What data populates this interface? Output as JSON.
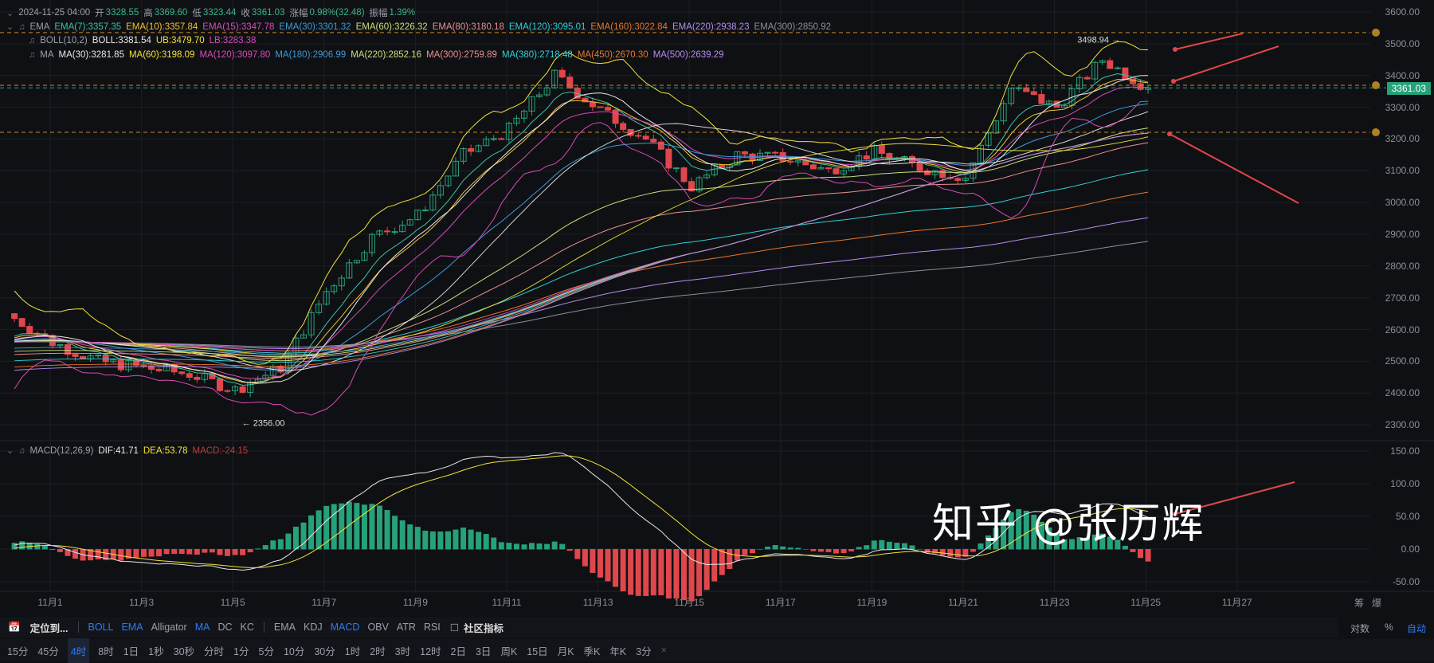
{
  "header": {
    "datetime": "2024-11-25 04:00",
    "open_label": "开",
    "open": "3328.55",
    "high_label": "高",
    "high": "3369.60",
    "low_label": "低",
    "low": "3323.44",
    "close_label": "收",
    "close": "3361.03",
    "change_label": "涨幅",
    "change": "0.98%(32.48)",
    "amp_label": "振幅",
    "amp": "1.39%"
  },
  "ema_legend": {
    "name": "EMA",
    "items": [
      {
        "t": "EMA(7):3357.35",
        "c": "#3bc3a3"
      },
      {
        "t": "EMA(10):3357.84",
        "c": "#f2c230"
      },
      {
        "t": "EMA(15):3347.78",
        "c": "#d64cb4"
      },
      {
        "t": "EMA(30):3301.32",
        "c": "#3d9ad8"
      },
      {
        "t": "EMA(60):3226.32",
        "c": "#c9e07a"
      },
      {
        "t": "EMA(80):3180.18",
        "c": "#e99191"
      },
      {
        "t": "EMA(120):3095.01",
        "c": "#2fd0d6"
      },
      {
        "t": "EMA(160):3022.84",
        "c": "#e9762c"
      },
      {
        "t": "EMA(220):2938.23",
        "c": "#b58cf0"
      },
      {
        "t": "EMA(300):2850.92",
        "c": "#8a8f99"
      }
    ]
  },
  "boll_legend": {
    "name": "BOLL(10,2)",
    "items": [
      {
        "t": "BOLL:3381.54",
        "c": "#e8e8e8"
      },
      {
        "t": "UB:3479.70",
        "c": "#f2e23a"
      },
      {
        "t": "LB:3283.38",
        "c": "#d64cb4"
      }
    ]
  },
  "ma_legend": {
    "name": "MA",
    "items": [
      {
        "t": "MA(30):3281.85",
        "c": "#e8e8e8"
      },
      {
        "t": "MA(60):3198.09",
        "c": "#f2e23a"
      },
      {
        "t": "MA(120):3097.80",
        "c": "#d64cb4"
      },
      {
        "t": "MA(180):2906.99",
        "c": "#3d9ad8"
      },
      {
        "t": "MA(220):2852.16",
        "c": "#c9e07a"
      },
      {
        "t": "MA(300):2759.89",
        "c": "#e99191"
      },
      {
        "t": "MA(380):2718.48",
        "c": "#2fd0d6"
      },
      {
        "t": "MA(450):2670.30",
        "c": "#e9762c"
      },
      {
        "t": "MA(500):2639.29",
        "c": "#b58cf0"
      }
    ]
  },
  "macd_legend": {
    "name": "MACD(12,26,9)",
    "dif": "DIF:41.71",
    "dea": "DEA:53.78",
    "macd": "MACD:-24.15"
  },
  "price_axis": [
    "3600.00",
    "3500.00",
    "3400.00",
    "3300.00",
    "3200.00",
    "3100.00",
    "3000.00",
    "2900.00",
    "2800.00",
    "2700.00",
    "2600.00",
    "2500.00",
    "2400.00",
    "2300.00"
  ],
  "macd_axis": [
    "150.00",
    "100.00",
    "50.00",
    "0.00",
    "-50.00"
  ],
  "last_price": "3361.03",
  "high_marker": "3498.94 →",
  "low_marker": "← 2356.00",
  "date_labels": [
    "11月1",
    "11月3",
    "11月5",
    "11月7",
    "11月9",
    "11月11",
    "11月13",
    "11月15",
    "11月17",
    "11月19",
    "11月21",
    "11月23",
    "11月25",
    "11月27"
  ],
  "right_corner": [
    "筹",
    "爆"
  ],
  "scale_options": {
    "log": "对数",
    "pct": "%",
    "auto": "自动"
  },
  "toolbar": {
    "locate": "定位到...",
    "main_indicators": [
      "BOLL",
      "EMA",
      "Alligator",
      "MA",
      "DC",
      "KC"
    ],
    "main_active": [
      "BOLL",
      "EMA",
      "MA"
    ],
    "sub_indicators": [
      "EMA",
      "KDJ",
      "MACD",
      "OBV",
      "ATR",
      "RSI"
    ],
    "sub_active": [
      "MACD"
    ],
    "community": "社区指标"
  },
  "intervals": [
    "15分",
    "45分",
    "4时",
    "8时",
    "1日",
    "1秒",
    "30秒",
    "分时",
    "1分",
    "5分",
    "10分",
    "30分",
    "1时",
    "2时",
    "3时",
    "12时",
    "2日",
    "3日",
    "周K",
    "15日",
    "月K",
    "季K",
    "年K",
    "3分"
  ],
  "active_interval": "4时",
  "close_icon": "×",
  "watermark": "知乎 @张历辉",
  "colors": {
    "up": "#26a17b",
    "down": "#e0474c",
    "bg": "#0f1013",
    "accent": "#2d7cf5",
    "hline": "#c98a2a"
  },
  "chart_data": {
    "type": "candlestick",
    "interval": "4h",
    "ylim": [
      2250,
      3620
    ],
    "macd_ylim": [
      -70,
      150
    ],
    "close_path": [
      [
        "10-31",
        2650
      ],
      [
        "11-1",
        2560
      ],
      [
        "11-2",
        2500
      ],
      [
        "11-3",
        2480
      ],
      [
        "11-4",
        2460
      ],
      [
        "11-5",
        2410
      ],
      [
        "11-6",
        2480
      ],
      [
        "11-7",
        2720
      ],
      [
        "11-8",
        2890
      ],
      [
        "11-9",
        2960
      ],
      [
        "11-10",
        3150
      ],
      [
        "11-11",
        3230
      ],
      [
        "11-12",
        3400
      ],
      [
        "11-13",
        3290
      ],
      [
        "11-14",
        3200
      ],
      [
        "11-15",
        3050
      ],
      [
        "11-16",
        3150
      ],
      [
        "11-17",
        3140
      ],
      [
        "11-18",
        3100
      ],
      [
        "11-19",
        3160
      ],
      [
        "11-20",
        3110
      ],
      [
        "11-21",
        3080
      ],
      [
        "11-22",
        3360
      ],
      [
        "11-23",
        3300
      ],
      [
        "11-24",
        3450
      ],
      [
        "11-25",
        3361.03
      ]
    ],
    "annotations": {
      "high": 3498.94,
      "low": 2356.0,
      "hlines": [
        3535,
        3369,
        3221
      ]
    }
  }
}
